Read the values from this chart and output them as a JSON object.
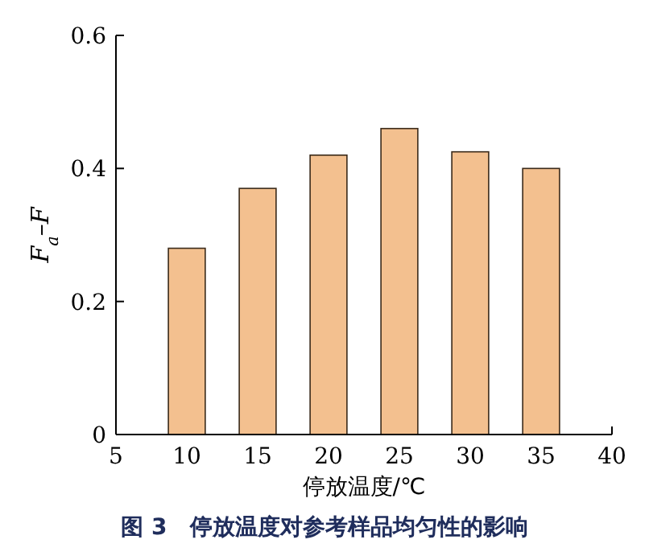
{
  "chart_data": {
    "type": "bar",
    "x": [
      10,
      15,
      20,
      25,
      30,
      35
    ],
    "values": [
      0.28,
      0.37,
      0.42,
      0.46,
      0.425,
      0.4
    ],
    "color": "#f3c08f",
    "xlabel": "停放温度/℃",
    "ylabel": "F$_{a}$–F",
    "xlim": [
      5,
      40
    ],
    "ylim": [
      0,
      0.6
    ],
    "xticks": [
      5,
      10,
      15,
      20,
      25,
      30,
      35,
      40
    ],
    "yticks": [
      0,
      0.2,
      0.4,
      0.6
    ],
    "annotations": [
      "图 3　停放温度对参考样品均匀性的影响"
    ]
  }
}
